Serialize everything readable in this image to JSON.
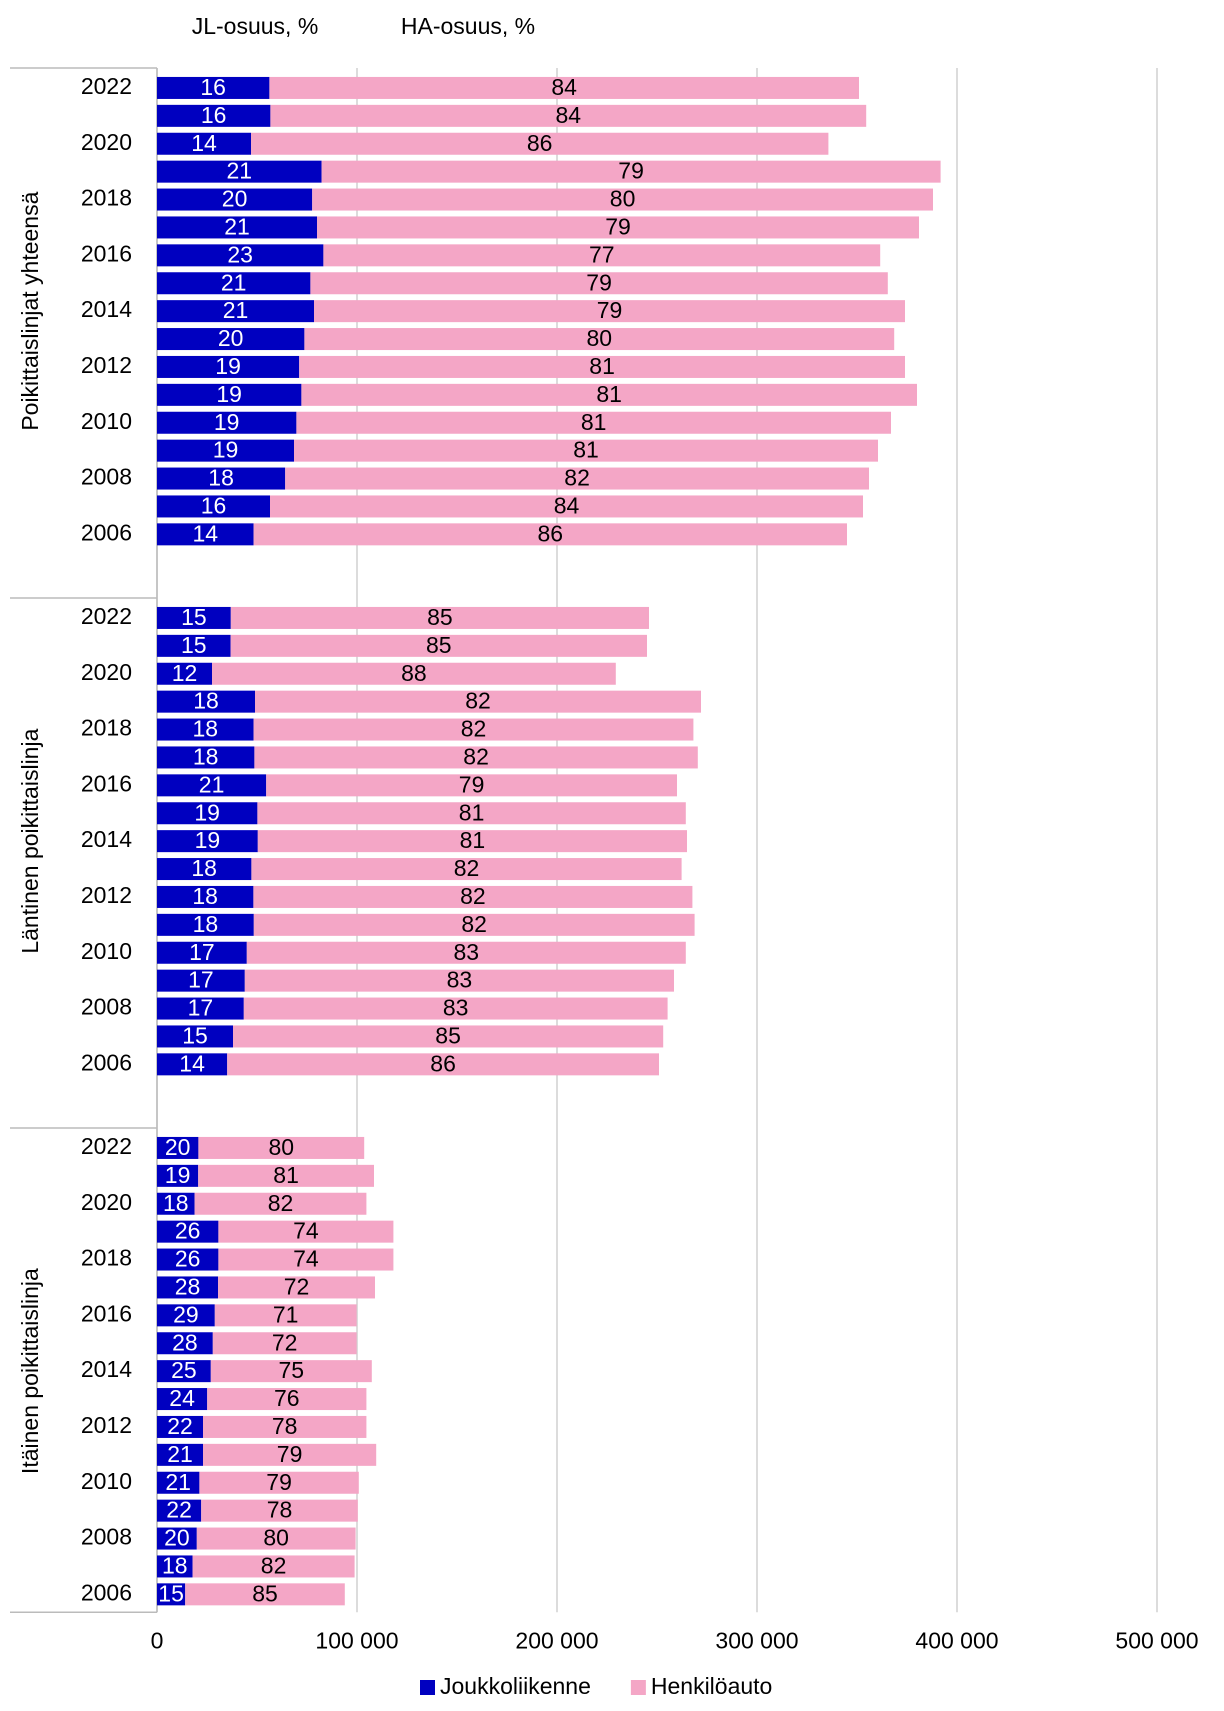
{
  "chart_data": {
    "type": "bar",
    "orientation": "horizontal",
    "stacked": true,
    "column_headers": [
      "JL-osuus, %",
      "HA-osuus, %"
    ],
    "categories": [
      "2022",
      null,
      "2020",
      null,
      "2018",
      null,
      "2016",
      null,
      "2014",
      null,
      "2012",
      null,
      "2010",
      null,
      "2008",
      null,
      "2006"
    ],
    "series": [
      {
        "name": "Joukkoliikenne",
        "color": "#0000c0"
      },
      {
        "name": "Henkilöauto",
        "color": "#f4a6c6"
      }
    ],
    "groups": [
      {
        "name": "Poikittaislinjat yhteensä",
        "values": [
          [
            56200,
            56700,
            47000,
            82300,
            77600,
            80000,
            83200,
            76700,
            78500,
            73700,
            71100,
            72200,
            69700,
            68500,
            64100,
            56500,
            48300
          ],
          [
            294800,
            297900,
            288700,
            309500,
            310400,
            301000,
            278400,
            288700,
            295500,
            294900,
            302900,
            307800,
            297300,
            292000,
            291900,
            296500,
            296700
          ]
        ],
        "shares": [
          [
            16,
            16,
            14,
            21,
            20,
            21,
            23,
            21,
            21,
            20,
            19,
            19,
            19,
            19,
            18,
            16,
            14
          ],
          [
            84,
            84,
            86,
            79,
            80,
            79,
            77,
            79,
            79,
            80,
            81,
            81,
            81,
            81,
            82,
            84,
            86
          ]
        ]
      },
      {
        "name": "Läntinen poikittaislinja",
        "values": [
          [
            36900,
            36800,
            27500,
            49000,
            48300,
            48700,
            54600,
            50200,
            50400,
            47200,
            48200,
            48400,
            44900,
            43900,
            43400,
            38000,
            35100
          ],
          [
            209100,
            208200,
            201900,
            223000,
            219900,
            221700,
            205400,
            214200,
            214600,
            215100,
            219500,
            220400,
            219500,
            214600,
            211900,
            215100,
            215900
          ]
        ],
        "shares": [
          [
            15,
            15,
            12,
            18,
            18,
            18,
            21,
            19,
            19,
            18,
            18,
            18,
            17,
            17,
            17,
            15,
            14
          ],
          [
            85,
            85,
            88,
            82,
            82,
            82,
            79,
            81,
            81,
            82,
            82,
            82,
            83,
            83,
            83,
            85,
            86
          ]
        ]
      },
      {
        "name": "Itäinen poikittaislinja",
        "values": [
          [
            20700,
            20600,
            18800,
            30700,
            30700,
            30500,
            28900,
            27900,
            26900,
            25100,
            23000,
            23000,
            21200,
            22100,
            19900,
            17800,
            14100
          ],
          [
            82900,
            87900,
            85900,
            87500,
            87500,
            78500,
            70900,
            71900,
            80500,
            79600,
            81700,
            86600,
            79700,
            78300,
            79400,
            81000,
            79800
          ]
        ],
        "shares": [
          [
            20,
            19,
            18,
            26,
            26,
            28,
            29,
            28,
            25,
            24,
            22,
            21,
            21,
            22,
            20,
            18,
            15
          ],
          [
            80,
            81,
            82,
            74,
            74,
            72,
            71,
            72,
            75,
            76,
            78,
            79,
            79,
            78,
            80,
            82,
            85
          ]
        ]
      }
    ],
    "xlim": [
      0,
      500000
    ],
    "xticks": [
      0,
      {
        "value": 100000,
        "label": "100 000"
      },
      {
        "value": 200000,
        "label": "200 000"
      },
      {
        "value": 300000,
        "label": "300 000"
      },
      {
        "value": 400000,
        "label": "400 000"
      },
      {
        "value": 500000,
        "label": "500 000"
      }
    ],
    "grid": true
  }
}
